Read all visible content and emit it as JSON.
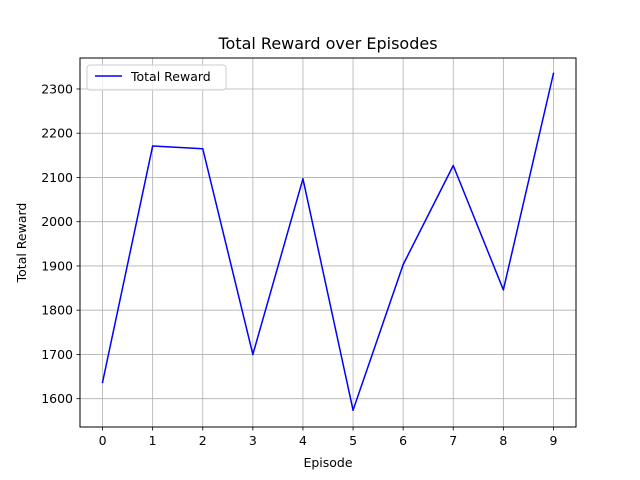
{
  "chart_data": {
    "type": "line",
    "title": "Total Reward over Episodes",
    "xlabel": "Episode",
    "ylabel": "Total Reward",
    "x": [
      0,
      1,
      2,
      3,
      4,
      5,
      6,
      7,
      8,
      9
    ],
    "xticks": [
      "0",
      "1",
      "2",
      "3",
      "4",
      "5",
      "6",
      "7",
      "8",
      "9"
    ],
    "yticks": [
      "1600",
      "1700",
      "1800",
      "1900",
      "2000",
      "2100",
      "2200",
      "2300"
    ],
    "yticks_values": [
      1600,
      1700,
      1800,
      1900,
      2000,
      2100,
      2200,
      2300
    ],
    "xlim": [
      -0.45,
      9.45
    ],
    "ylim": [
      1536,
      2370
    ],
    "grid": true,
    "legend_position": "upper-left",
    "series": [
      {
        "name": "Total Reward",
        "color": "#0000ff",
        "values": [
          1637,
          2171,
          2165,
          1700,
          2097,
          1574,
          1903,
          2127,
          1846,
          2335
        ]
      }
    ]
  }
}
